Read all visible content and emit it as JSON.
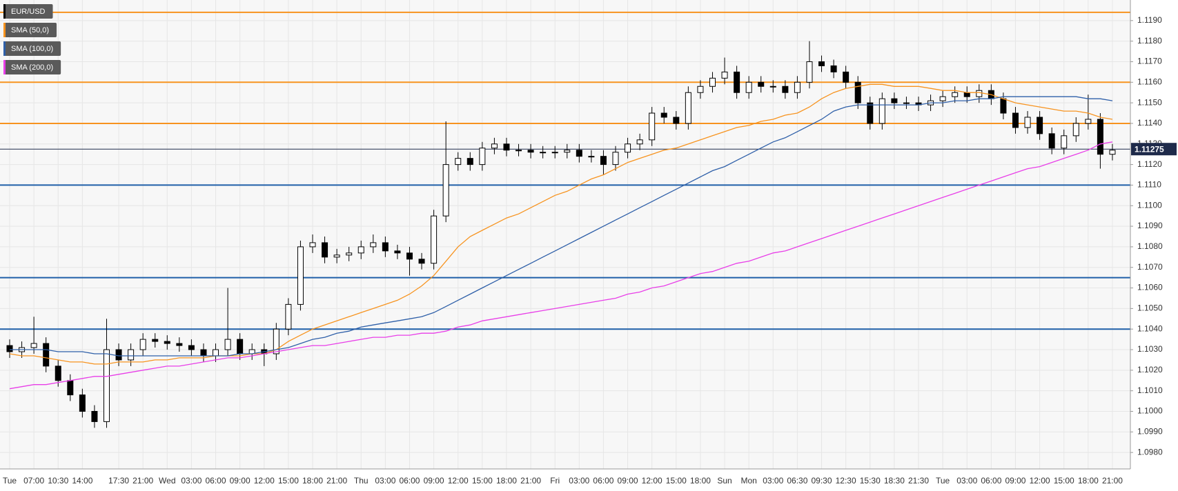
{
  "chart_data": {
    "type": "candlestick",
    "categories": [
      "Tue",
      null,
      "07:00",
      null,
      "10:30",
      null,
      "14:00",
      null,
      null,
      "17:30",
      null,
      "21:00",
      null,
      "Wed",
      null,
      "03:00",
      null,
      "06:00",
      null,
      "09:00",
      null,
      "12:00",
      null,
      "15:00",
      null,
      "18:00",
      null,
      "21:00",
      null,
      "Thu",
      null,
      "03:00",
      null,
      "06:00",
      null,
      "09:00",
      null,
      "12:00",
      null,
      "15:00",
      null,
      "18:00",
      null,
      "21:00",
      null,
      "Fri",
      null,
      "03:00",
      null,
      "06:00",
      null,
      "09:00",
      null,
      "12:00",
      null,
      "15:00",
      null,
      "18:00",
      null,
      "Sun",
      null,
      "Mon",
      null,
      "03:00",
      null,
      "06:30",
      null,
      "09:30",
      null,
      "12:30",
      null,
      "15:30",
      null,
      "18:30",
      null,
      "21:30",
      null,
      "Tue",
      null,
      "03:00",
      null,
      "06:00",
      null,
      "09:00",
      null,
      "12:00",
      null,
      "15:00",
      null,
      "18:00",
      null,
      "21:00"
    ],
    "series": [
      {
        "name": "EUR/USD",
        "type": "candlestick",
        "color": "#000000",
        "open": [
          1.1032,
          1.1029,
          1.1031,
          1.1033,
          1.1022,
          1.1015,
          1.1008,
          1.1,
          1.0995,
          1.103,
          1.1025,
          1.103,
          1.1035,
          1.1034,
          1.1033,
          1.1032,
          1.103,
          1.1027,
          1.103,
          1.1035,
          1.1028,
          1.103,
          1.1028,
          1.104,
          1.1052,
          1.108,
          1.1082,
          1.1075,
          1.1076,
          1.1077,
          1.108,
          1.1082,
          1.1078,
          1.1077,
          1.1074,
          1.1072,
          1.1095,
          1.112,
          1.1123,
          1.112,
          1.1128,
          1.113,
          1.1127,
          1.1127,
          1.1126,
          1.1126,
          1.1126,
          1.1127,
          1.1124,
          1.1124,
          1.112,
          1.1126,
          1.113,
          1.1132,
          1.1145,
          1.1143,
          1.114,
          1.1155,
          1.1158,
          1.1162,
          1.1165,
          1.1155,
          1.116,
          1.1158,
          1.1158,
          1.1155,
          1.116,
          1.117,
          1.1168,
          1.1165,
          1.116,
          1.115,
          1.114,
          1.1152,
          1.115,
          1.115,
          1.1149,
          1.1151,
          1.1153,
          1.1155,
          1.1153,
          1.1156,
          1.1152,
          1.1145,
          1.1138,
          1.1143,
          1.1135,
          1.1128,
          1.1134,
          1.114,
          1.1142,
          1.1125
        ],
        "high": [
          1.1035,
          1.1034,
          1.1046,
          1.1036,
          1.1025,
          1.1018,
          1.1011,
          1.1003,
          1.1045,
          1.1033,
          1.1033,
          1.1038,
          1.1038,
          1.1037,
          1.1036,
          1.1035,
          1.1033,
          1.1033,
          1.106,
          1.1038,
          1.1033,
          1.1033,
          1.1043,
          1.1055,
          1.1083,
          1.1086,
          1.1085,
          1.1079,
          1.108,
          1.1083,
          1.1086,
          1.1085,
          1.1081,
          1.108,
          1.1077,
          1.1098,
          1.1141,
          1.1126,
          1.1126,
          1.1131,
          1.1133,
          1.1133,
          1.113,
          1.113,
          1.1129,
          1.1129,
          1.113,
          1.113,
          1.1127,
          1.1127,
          1.1129,
          1.1133,
          1.1135,
          1.1148,
          1.1148,
          1.1146,
          1.1158,
          1.1161,
          1.1165,
          1.1172,
          1.1168,
          1.1163,
          1.1163,
          1.1161,
          1.1161,
          1.1163,
          1.118,
          1.1173,
          1.1171,
          1.1168,
          1.1163,
          1.1153,
          1.1155,
          1.1155,
          1.1153,
          1.1153,
          1.1154,
          1.1156,
          1.1158,
          1.1158,
          1.1159,
          1.1159,
          1.1155,
          1.1148,
          1.1146,
          1.1146,
          1.1138,
          1.1137,
          1.1143,
          1.1154,
          1.1145,
          1.113
        ],
        "low": [
          1.1026,
          1.1026,
          1.1028,
          1.1019,
          1.1012,
          1.1005,
          1.0997,
          1.0992,
          1.0992,
          1.1022,
          1.1022,
          1.1027,
          1.1031,
          1.103,
          1.1029,
          1.1027,
          1.1024,
          1.1024,
          1.1027,
          1.1025,
          1.1025,
          1.1022,
          1.1025,
          1.1037,
          1.1049,
          1.1077,
          1.1072,
          1.1072,
          1.1073,
          1.1074,
          1.1077,
          1.1075,
          1.1074,
          1.1066,
          1.1069,
          1.1069,
          1.1092,
          1.1117,
          1.1117,
          1.1117,
          1.1125,
          1.1124,
          1.1124,
          1.1123,
          1.1123,
          1.1123,
          1.1123,
          1.1121,
          1.1121,
          1.1115,
          1.1117,
          1.1123,
          1.1127,
          1.1129,
          1.114,
          1.1137,
          1.1137,
          1.1152,
          1.1155,
          1.1159,
          1.1152,
          1.1152,
          1.1155,
          1.1155,
          1.1152,
          1.1152,
          1.1157,
          1.1165,
          1.1162,
          1.1157,
          1.1147,
          1.1137,
          1.1137,
          1.1147,
          1.1147,
          1.1146,
          1.1146,
          1.1148,
          1.115,
          1.115,
          1.115,
          1.1149,
          1.1142,
          1.1135,
          1.1135,
          1.1132,
          1.1125,
          1.1125,
          1.1131,
          1.1137,
          1.1118,
          1.1122
        ],
        "close": [
          1.1029,
          1.1031,
          1.1033,
          1.1022,
          1.1015,
          1.1008,
          1.1,
          1.0995,
          1.103,
          1.1025,
          1.103,
          1.1035,
          1.1034,
          1.1033,
          1.1032,
          1.103,
          1.1027,
          1.103,
          1.1035,
          1.1028,
          1.103,
          1.1028,
          1.104,
          1.1052,
          1.108,
          1.1082,
          1.1075,
          1.1076,
          1.1077,
          1.108,
          1.1082,
          1.1078,
          1.1077,
          1.1074,
          1.1072,
          1.1095,
          1.112,
          1.1123,
          1.112,
          1.1128,
          1.113,
          1.1127,
          1.1127,
          1.1126,
          1.1126,
          1.1126,
          1.1127,
          1.1124,
          1.1124,
          1.112,
          1.1126,
          1.113,
          1.1132,
          1.1145,
          1.1143,
          1.114,
          1.1155,
          1.1158,
          1.1162,
          1.1165,
          1.1155,
          1.116,
          1.1158,
          1.1158,
          1.1155,
          1.116,
          1.117,
          1.1168,
          1.1165,
          1.116,
          1.115,
          1.114,
          1.1152,
          1.115,
          1.115,
          1.1149,
          1.1151,
          1.1153,
          1.1155,
          1.1153,
          1.1156,
          1.1152,
          1.1145,
          1.1138,
          1.1143,
          1.1135,
          1.1128,
          1.1134,
          1.114,
          1.1142,
          1.1125,
          1.1127
        ]
      },
      {
        "name": "SMA (50,0)",
        "type": "line",
        "color": "#f7931e",
        "values": [
          1.1028,
          1.1027,
          1.1027,
          1.1026,
          1.1025,
          1.1024,
          1.1024,
          1.1023,
          1.1023,
          1.1024,
          1.1024,
          1.1024,
          1.1025,
          1.1025,
          1.1026,
          1.1026,
          1.1026,
          1.1027,
          1.1027,
          1.1027,
          1.1028,
          1.1028,
          1.103,
          1.1034,
          1.1037,
          1.104,
          1.1042,
          1.1044,
          1.1046,
          1.1048,
          1.105,
          1.1052,
          1.1054,
          1.1057,
          1.1061,
          1.1066,
          1.1073,
          1.108,
          1.1085,
          1.1088,
          1.1091,
          1.1094,
          1.1096,
          1.1099,
          1.1102,
          1.1105,
          1.1107,
          1.111,
          1.1113,
          1.1115,
          1.1118,
          1.1121,
          1.1123,
          1.1125,
          1.1127,
          1.1128,
          1.113,
          1.1132,
          1.1134,
          1.1136,
          1.1138,
          1.1139,
          1.1141,
          1.1142,
          1.1144,
          1.1145,
          1.1148,
          1.1152,
          1.1155,
          1.1157,
          1.1158,
          1.1159,
          1.1159,
          1.1158,
          1.1158,
          1.1158,
          1.1157,
          1.1156,
          1.1156,
          1.1155,
          1.1155,
          1.1154,
          1.1152,
          1.115,
          1.1149,
          1.1148,
          1.1147,
          1.1146,
          1.1146,
          1.1145,
          1.1143,
          1.1142
        ]
      },
      {
        "name": "SMA (100,0)",
        "type": "line",
        "color": "#2e5fa8",
        "values": [
          1.103,
          1.103,
          1.103,
          1.103,
          1.1029,
          1.1029,
          1.1029,
          1.1028,
          1.1028,
          1.1027,
          1.1027,
          1.1027,
          1.1027,
          1.1027,
          1.1027,
          1.1027,
          1.1027,
          1.1027,
          1.1027,
          1.1028,
          1.1028,
          1.1029,
          1.103,
          1.1031,
          1.1033,
          1.1035,
          1.1036,
          1.1038,
          1.1039,
          1.1041,
          1.1042,
          1.1043,
          1.1044,
          1.1045,
          1.1046,
          1.1048,
          1.1051,
          1.1054,
          1.1057,
          1.106,
          1.1063,
          1.1066,
          1.1069,
          1.1072,
          1.1075,
          1.1078,
          1.1081,
          1.1084,
          1.1087,
          1.109,
          1.1093,
          1.1096,
          1.1099,
          1.1102,
          1.1105,
          1.1108,
          1.1111,
          1.1114,
          1.1117,
          1.1119,
          1.1122,
          1.1125,
          1.1128,
          1.1131,
          1.1133,
          1.1136,
          1.1139,
          1.1142,
          1.1146,
          1.1148,
          1.1149,
          1.1149,
          1.1149,
          1.1149,
          1.1149,
          1.1149,
          1.115,
          1.115,
          1.1151,
          1.1151,
          1.1152,
          1.1152,
          1.1153,
          1.1153,
          1.1153,
          1.1153,
          1.1153,
          1.1153,
          1.1153,
          1.1152,
          1.1152,
          1.1151
        ]
      },
      {
        "name": "SMA (200,0)",
        "type": "line",
        "color": "#e83ee8",
        "values": [
          1.1011,
          1.1012,
          1.1013,
          1.1013,
          1.1014,
          1.1015,
          1.1016,
          1.1017,
          1.1017,
          1.1018,
          1.1019,
          1.102,
          1.1021,
          1.1022,
          1.1022,
          1.1023,
          1.1024,
          1.1025,
          1.1026,
          1.1026,
          1.1027,
          1.1028,
          1.1029,
          1.103,
          1.1031,
          1.1032,
          1.1032,
          1.1033,
          1.1034,
          1.1035,
          1.1036,
          1.1036,
          1.1037,
          1.1037,
          1.1038,
          1.1038,
          1.1039,
          1.1041,
          1.1042,
          1.1044,
          1.1045,
          1.1046,
          1.1047,
          1.1048,
          1.1049,
          1.105,
          1.1051,
          1.1052,
          1.1053,
          1.1054,
          1.1055,
          1.1057,
          1.1058,
          1.106,
          1.1061,
          1.1063,
          1.1065,
          1.1067,
          1.1068,
          1.107,
          1.1072,
          1.1073,
          1.1075,
          1.1077,
          1.1078,
          1.108,
          1.1082,
          1.1084,
          1.1086,
          1.1088,
          1.109,
          1.1092,
          1.1094,
          1.1096,
          1.1098,
          1.11,
          1.1102,
          1.1104,
          1.1106,
          1.1108,
          1.111,
          1.1112,
          1.1114,
          1.1116,
          1.1118,
          1.1119,
          1.1121,
          1.1123,
          1.1125,
          1.1127,
          1.113,
          1.1131
        ]
      }
    ],
    "levels": [
      {
        "value": 1.1194,
        "color": "#f7931e"
      },
      {
        "value": 1.116,
        "color": "#f7931e"
      },
      {
        "value": 1.114,
        "color": "#f7931e"
      },
      {
        "value": 1.111,
        "color": "#1f5fa8"
      },
      {
        "value": 1.1065,
        "color": "#1f5fa8"
      },
      {
        "value": 1.104,
        "color": "#1f5fa8"
      }
    ],
    "last_price": 1.11275,
    "ylim": [
      1.0972,
      1.12
    ],
    "yticks": [
      {
        "value": 1.098,
        "label": "1.0980"
      },
      {
        "value": 1.099,
        "label": "1.0990"
      },
      {
        "value": 1.1,
        "label": "1.1000"
      },
      {
        "value": 1.101,
        "label": "1.1010"
      },
      {
        "value": 1.102,
        "label": "1.1020"
      },
      {
        "value": 1.103,
        "label": "1.1030"
      },
      {
        "value": 1.104,
        "label": "1.1040"
      },
      {
        "value": 1.105,
        "label": "1.1050"
      },
      {
        "value": 1.106,
        "label": "1.1060"
      },
      {
        "value": 1.107,
        "label": "1.1070"
      },
      {
        "value": 1.108,
        "label": "1.1080"
      },
      {
        "value": 1.109,
        "label": "1.1090"
      },
      {
        "value": 1.11,
        "label": "1.1100"
      },
      {
        "value": 1.111,
        "label": "1.1110"
      },
      {
        "value": 1.112,
        "label": "1.1120"
      },
      {
        "value": 1.113,
        "label": "1.1130"
      },
      {
        "value": 1.114,
        "label": "1.1140"
      },
      {
        "value": 1.115,
        "label": "1.1150"
      },
      {
        "value": 1.116,
        "label": "1.1160"
      },
      {
        "value": 1.117,
        "label": "1.1170"
      },
      {
        "value": 1.118,
        "label": "1.1180"
      },
      {
        "value": 1.119,
        "label": "1.1190"
      }
    ],
    "grid": true
  }
}
